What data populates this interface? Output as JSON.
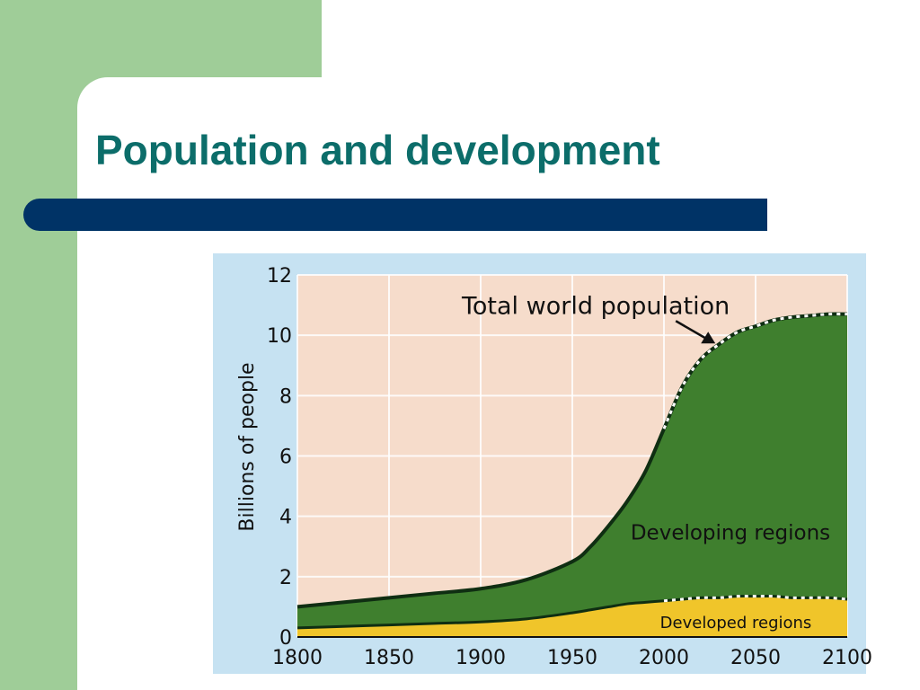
{
  "slide": {
    "title": "Population and development"
  },
  "colors": {
    "sidebar": "#9fcd98",
    "title_text": "#0c6d6a",
    "title_bar": "#003366",
    "plot_background": "#f6dccb",
    "developing_fill": "#3f7f2e",
    "developed_fill": "#f0c52a"
  },
  "chart_data": {
    "type": "area",
    "ylabel": "Billions of people",
    "xlim": [
      1800,
      2100
    ],
    "ylim": [
      0,
      12
    ],
    "grid": true,
    "x_ticks": [
      1800,
      1850,
      1900,
      1950,
      2000,
      2050,
      2100
    ],
    "y_ticks": [
      0,
      2,
      4,
      6,
      8,
      10,
      12
    ],
    "x": [
      1800,
      1825,
      1850,
      1875,
      1900,
      1925,
      1950,
      1960,
      1970,
      1980,
      1990,
      2000,
      2010,
      2020,
      2030,
      2040,
      2050,
      2060,
      2070,
      2080,
      2090,
      2100
    ],
    "series": [
      {
        "name": "Developed regions",
        "values": [
          0.3,
          0.35,
          0.4,
          0.45,
          0.5,
          0.6,
          0.8,
          0.9,
          1.0,
          1.1,
          1.15,
          1.2,
          1.25,
          1.3,
          1.3,
          1.35,
          1.35,
          1.35,
          1.3,
          1.3,
          1.3,
          1.25
        ]
      },
      {
        "name": "Total world population",
        "values": [
          1.0,
          1.15,
          1.3,
          1.45,
          1.6,
          1.9,
          2.5,
          3.0,
          3.7,
          4.5,
          5.5,
          6.9,
          8.3,
          9.2,
          9.7,
          10.1,
          10.3,
          10.5,
          10.6,
          10.65,
          10.7,
          10.7
        ]
      }
    ],
    "projection_start_x": 2000,
    "annotations": [
      {
        "text": "Total world population",
        "x": 2000,
        "y": 11.0,
        "arrow_to": [
          2030,
          9.7
        ]
      },
      {
        "text": "Developing regions",
        "x": 2050,
        "y": 3.0
      },
      {
        "text": "Developed regions",
        "x": 2050,
        "y": 0.5
      }
    ]
  }
}
